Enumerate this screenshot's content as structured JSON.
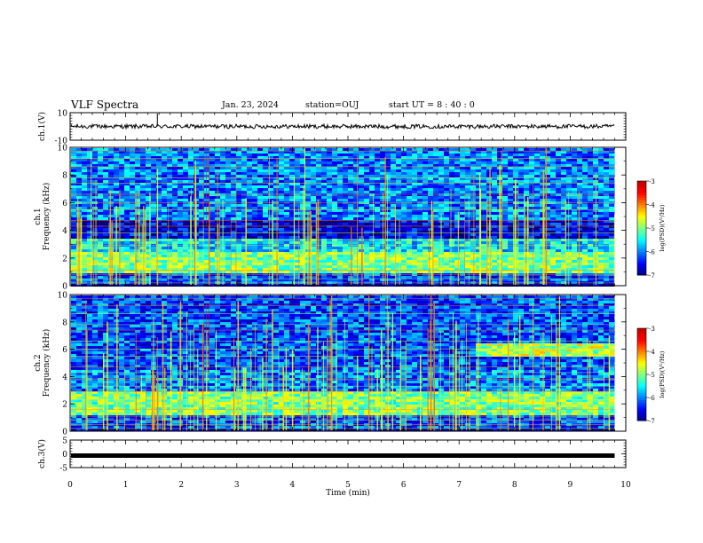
{
  "header": {
    "title": "VLF Spectra",
    "date": "Jan. 23, 2024",
    "station": "station=OUJ",
    "start": "start UT =  8 : 40 : 0"
  },
  "chart_data": [
    {
      "type": "line",
      "name": "ch1-waveform",
      "ylabel": "ch.1(V)",
      "ylim": [
        -10,
        10
      ],
      "yticks": [
        "10",
        "-10"
      ],
      "xlim": [
        0,
        10
      ],
      "approx_level": 0,
      "amplitude": 1.5
    },
    {
      "type": "heatmap",
      "name": "ch1-spectrogram",
      "ylabel": "ch.1\nFrequency (kHz)",
      "ylabel_line1": "ch.1",
      "ylabel_line2": "Frequency (kHz)",
      "ylim": [
        0,
        10
      ],
      "yticks": [
        "0",
        "2",
        "4",
        "6",
        "8",
        "10"
      ],
      "xlim": [
        0,
        10
      ],
      "colorbar": {
        "label": "log(PSD)(V²/Hz)",
        "range": [
          -7,
          -3
        ],
        "ticks": [
          "-3",
          "-4",
          "-5",
          "-6",
          "-7"
        ]
      },
      "bands_khz": [
        {
          "from": 0.3,
          "to": 1.0,
          "level": -6.2
        },
        {
          "from": 1.0,
          "to": 2.6,
          "level": -5.0
        },
        {
          "from": 2.6,
          "to": 3.4,
          "level": -5.6
        },
        {
          "from": 3.4,
          "to": 4.8,
          "level": -6.6
        },
        {
          "from": 4.8,
          "to": 10.0,
          "level": -6.0
        }
      ]
    },
    {
      "type": "heatmap",
      "name": "ch2-spectrogram",
      "ylabel": "ch.2\nFrequency (kHz)",
      "ylabel_line1": "ch.2",
      "ylabel_line2": "Frequency (kHz)",
      "ylim": [
        0,
        10
      ],
      "yticks": [
        "0",
        "2",
        "4",
        "6",
        "8",
        "10"
      ],
      "xlim": [
        0,
        10
      ],
      "colorbar": {
        "label": "log(PSD)(V²/Hz)",
        "range": [
          -7,
          -3
        ],
        "ticks": [
          "-3",
          "-4",
          "-5",
          "-6",
          "-7"
        ]
      },
      "bands_khz": [
        {
          "from": 0.3,
          "to": 1.2,
          "level": -6.2
        },
        {
          "from": 1.2,
          "to": 3.0,
          "level": -5.0
        },
        {
          "from": 3.0,
          "to": 4.6,
          "level": -6.0
        },
        {
          "from": 4.6,
          "to": 10.0,
          "level": -6.2
        }
      ],
      "feature": {
        "from_min": 7.3,
        "to_min": 9.8,
        "from_khz": 5.6,
        "to_khz": 6.6,
        "level": -4.8
      }
    },
    {
      "type": "line",
      "name": "ch3-waveform",
      "ylabel": "ch.3(V)",
      "ylim": [
        -5,
        5
      ],
      "yticks": [
        "5",
        "0",
        "-5"
      ],
      "xlim": [
        0,
        10
      ],
      "approx_level": 0
    }
  ],
  "xaxis": {
    "label": "Time (min)",
    "ticks": [
      "0",
      "1",
      "2",
      "3",
      "4",
      "5",
      "6",
      "7",
      "8",
      "9",
      "10"
    ],
    "range": [
      0,
      10
    ],
    "data_end_min": 9.8
  }
}
